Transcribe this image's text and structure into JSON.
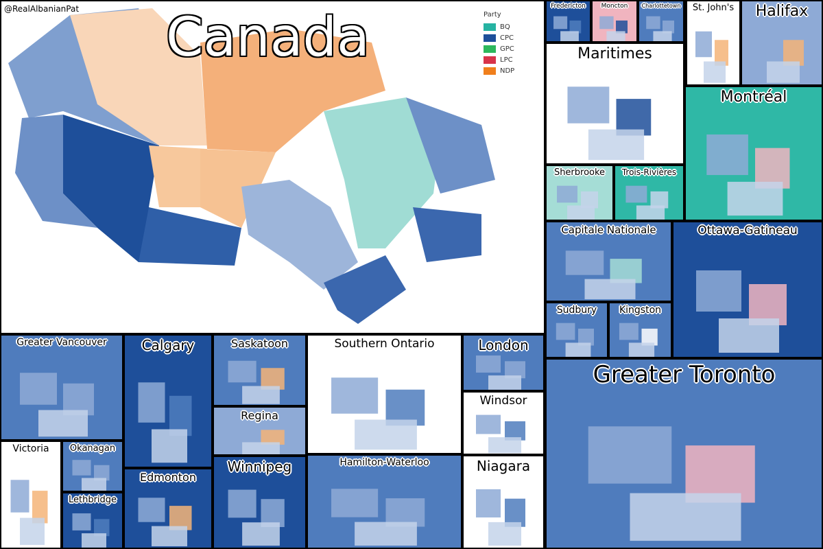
{
  "credit": "@RealAlbanianPat",
  "title": "Canada",
  "legend": {
    "title": "Party",
    "items": [
      {
        "label": "BQ",
        "color": "#26b3a2"
      },
      {
        "label": "CPC",
        "color": "#1e4f9a"
      },
      {
        "label": "GPC",
        "color": "#2db85c"
      },
      {
        "label": "LPC",
        "color": "#d8334a"
      },
      {
        "label": "NDP",
        "color": "#f07f1c"
      }
    ]
  },
  "panels": [
    {
      "label": "Fredericton"
    },
    {
      "label": "Moncton"
    },
    {
      "label": "Charlottetown"
    },
    {
      "label": "St. John's"
    },
    {
      "label": "Halifax"
    },
    {
      "label": "Maritimes"
    },
    {
      "label": "Montréal"
    },
    {
      "label": "Sherbrooke"
    },
    {
      "label": "Trois-Rivières"
    },
    {
      "label": "Capitale Nationale"
    },
    {
      "label": "Ottawa-Gatineau"
    },
    {
      "label": "Sudbury"
    },
    {
      "label": "Kingston"
    },
    {
      "label": "Greater Toronto"
    },
    {
      "label": "Greater Vancouver"
    },
    {
      "label": "Calgary"
    },
    {
      "label": "Saskatoon"
    },
    {
      "label": "Southern Ontario"
    },
    {
      "label": "London"
    },
    {
      "label": "Victoria"
    },
    {
      "label": "Okanagan"
    },
    {
      "label": "Regina"
    },
    {
      "label": "Windsor"
    },
    {
      "label": "Lethbridge"
    },
    {
      "label": "Edmonton"
    },
    {
      "label": "Winnipeg"
    },
    {
      "label": "Hamilton-Waterloo"
    },
    {
      "label": "Niagara"
    }
  ]
}
